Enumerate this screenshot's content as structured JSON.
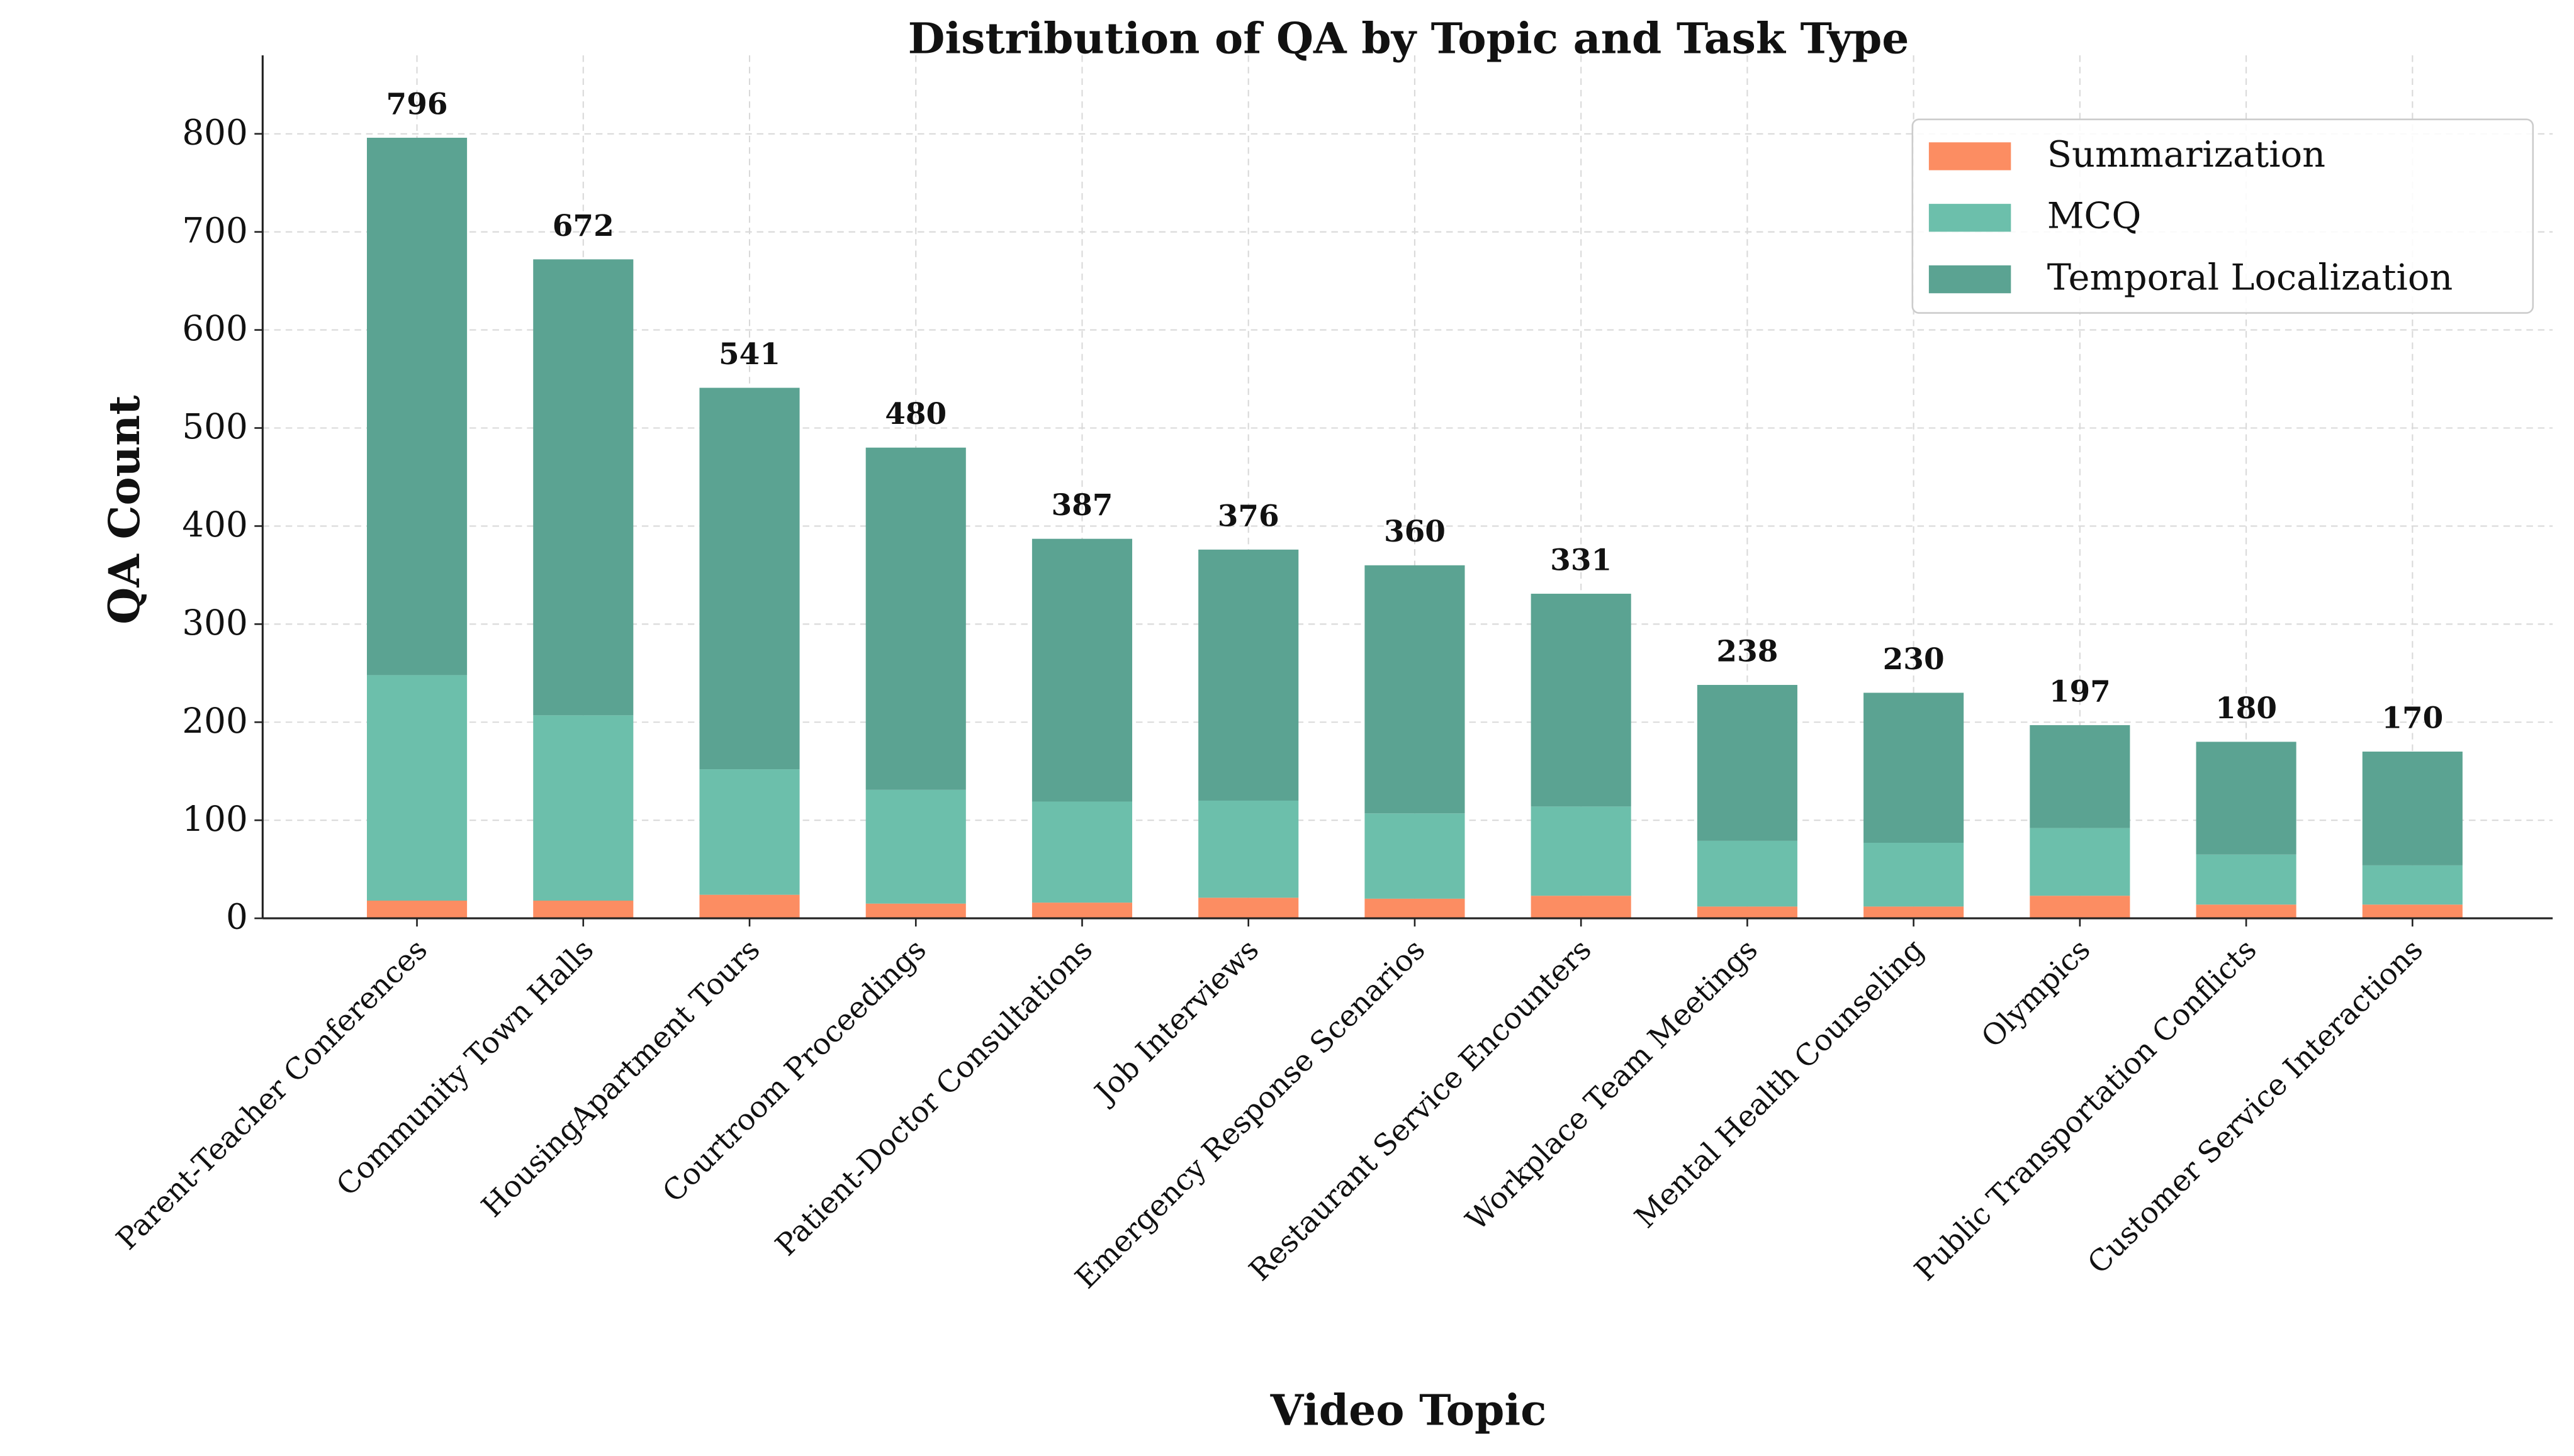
{
  "chart_data": {
    "type": "stacked-bar",
    "title": "Distribution of QA by Topic and Task Type",
    "x_label": "Video Topic",
    "y_label": "QA Count",
    "categories": [
      "Parent-Teacher Conferences",
      "Community Town Halls",
      "HousingApartment Tours",
      "Courtroom Proceedings",
      "Patient-Doctor Consultations",
      "Job Interviews",
      "Emergency Response Scenarios",
      "Restaurant Service Encounters",
      "Workplace Team Meetings",
      "Mental Health Counseling",
      "Olympics",
      "Public Transportation Conflicts",
      "Customer Service Interactions"
    ],
    "series": [
      {
        "name": "Summarization",
        "color": "#fc8d62",
        "values": [
          18,
          18,
          24,
          15,
          16,
          21,
          20,
          23,
          12,
          12,
          23,
          14,
          14
        ]
      },
      {
        "name": "MCQ",
        "color": "#6cbfab",
        "values": [
          230,
          189,
          128,
          116,
          103,
          99,
          87,
          91,
          67,
          65,
          69,
          51,
          40
        ]
      },
      {
        "name": "Temporal Localization",
        "color": "#5ba392",
        "values": [
          548,
          465,
          389,
          349,
          268,
          256,
          253,
          217,
          159,
          153,
          105,
          115,
          116
        ]
      }
    ],
    "totals": [
      796,
      672,
      541,
      480,
      387,
      376,
      360,
      331,
      238,
      230,
      197,
      180,
      170
    ],
    "ylim": [
      0,
      880
    ],
    "yticks": [
      0,
      100,
      200,
      300,
      400,
      500,
      600,
      700,
      800
    ],
    "grid": true,
    "legend": "upper right"
  }
}
